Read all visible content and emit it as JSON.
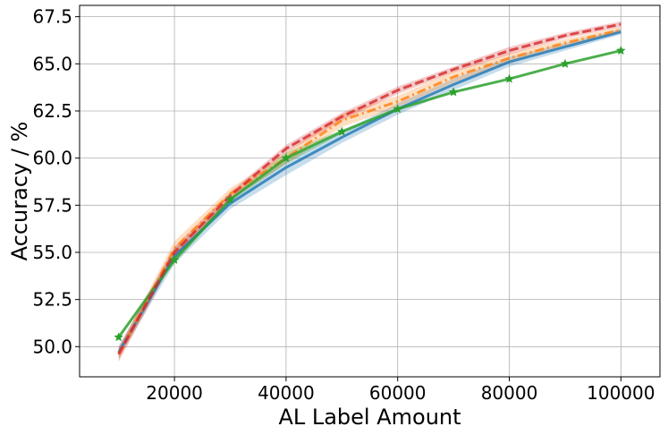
{
  "chart_data": {
    "type": "line",
    "title": "",
    "xlabel": "AL Label Amount",
    "ylabel": "Accuracy / %",
    "xlim": [
      3000,
      107000
    ],
    "ylim": [
      48.4,
      68.1
    ],
    "xticks": [
      20000,
      40000,
      60000,
      80000,
      100000
    ],
    "xtick_labels": [
      "20000",
      "40000",
      "60000",
      "80000",
      "100000"
    ],
    "yticks": [
      50.0,
      52.5,
      55.0,
      57.5,
      60.0,
      62.5,
      65.0,
      67.5
    ],
    "ytick_labels": [
      "50.0",
      "52.5",
      "55.0",
      "57.5",
      "60.0",
      "62.5",
      "65.0",
      "67.5"
    ],
    "grid": true,
    "series": [
      {
        "color": "#1f77b4",
        "line_style": "solid",
        "marker": "none",
        "x": [
          10000,
          20000,
          30000,
          40000,
          50000,
          60000,
          70000,
          80000,
          90000,
          100000
        ],
        "y": [
          49.7,
          54.8,
          57.6,
          59.5,
          61.1,
          62.6,
          63.9,
          65.1,
          65.9,
          66.7
        ],
        "band": [
          0.3,
          0.4,
          0.3,
          0.4,
          0.3,
          0.3,
          0.3,
          0.25,
          0.2,
          0.15
        ]
      },
      {
        "color": "#ff7f0e",
        "line_style": "dashdot",
        "marker": "none",
        "x": [
          10000,
          20000,
          30000,
          40000,
          50000,
          60000,
          70000,
          80000,
          90000,
          100000
        ],
        "y": [
          49.6,
          55.2,
          58.1,
          60.0,
          62.0,
          63.0,
          64.3,
          65.3,
          66.1,
          66.8
        ],
        "band": [
          0.3,
          0.4,
          0.3,
          0.3,
          0.35,
          0.3,
          0.3,
          0.25,
          0.2,
          0.15
        ]
      },
      {
        "color": "#2ca02c",
        "line_style": "solid",
        "marker": "star",
        "x": [
          10000,
          20000,
          30000,
          40000,
          50000,
          60000,
          70000,
          80000,
          90000,
          100000
        ],
        "y": [
          50.5,
          54.6,
          57.8,
          60.0,
          61.4,
          62.6,
          63.5,
          64.2,
          65.0,
          65.7
        ],
        "band": [
          0.1,
          0.2,
          0.1,
          0.3,
          0.1,
          0.1,
          0.05,
          0.05,
          0.05,
          0.05
        ]
      },
      {
        "color": "#d62728",
        "line_style": "dashed",
        "marker": "none",
        "x": [
          10000,
          20000,
          30000,
          40000,
          50000,
          60000,
          70000,
          80000,
          90000,
          100000
        ],
        "y": [
          49.6,
          55.0,
          58.0,
          60.5,
          62.2,
          63.6,
          64.7,
          65.7,
          66.5,
          67.1
        ],
        "band": [
          0.4,
          0.3,
          0.2,
          0.2,
          0.2,
          0.2,
          0.15,
          0.2,
          0.15,
          0.15
        ]
      }
    ]
  }
}
